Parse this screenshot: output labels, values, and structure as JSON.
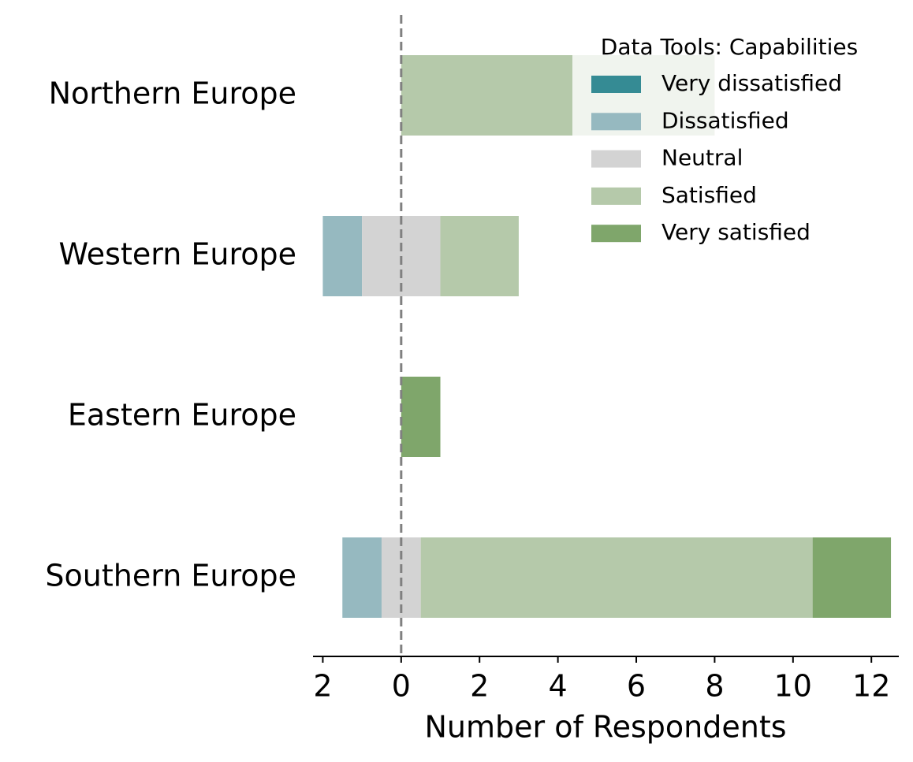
{
  "chart_data": {
    "type": "diverging_bar",
    "legend_title": "Data Tools: Capabilities",
    "xlabel": "Number of Respondents",
    "categories": [
      "Northern Europe",
      "Western Europe",
      "Eastern Europe",
      "Southern Europe"
    ],
    "series": [
      {
        "name": "Very dissatisfied",
        "color": "#358b94",
        "values": [
          0,
          0,
          0,
          0
        ]
      },
      {
        "name": "Dissatisfied",
        "color": "#96b9c0",
        "values": [
          0,
          1,
          0,
          1
        ]
      },
      {
        "name": "Neutral",
        "color": "#d3d3d3",
        "values": [
          0,
          2,
          0,
          1
        ]
      },
      {
        "name": "Satisfied",
        "color": "#b5c9aa",
        "values": [
          8,
          2,
          0,
          10
        ]
      },
      {
        "name": "Very satisfied",
        "color": "#7fa66b",
        "values": [
          0,
          0,
          1,
          2
        ]
      }
    ],
    "xlim": [
      -2.25,
      12.7
    ],
    "xticks": [
      {
        "value": -2,
        "label": "2"
      },
      0,
      2,
      4,
      6,
      8,
      10,
      12
    ],
    "legend": "upper right"
  }
}
